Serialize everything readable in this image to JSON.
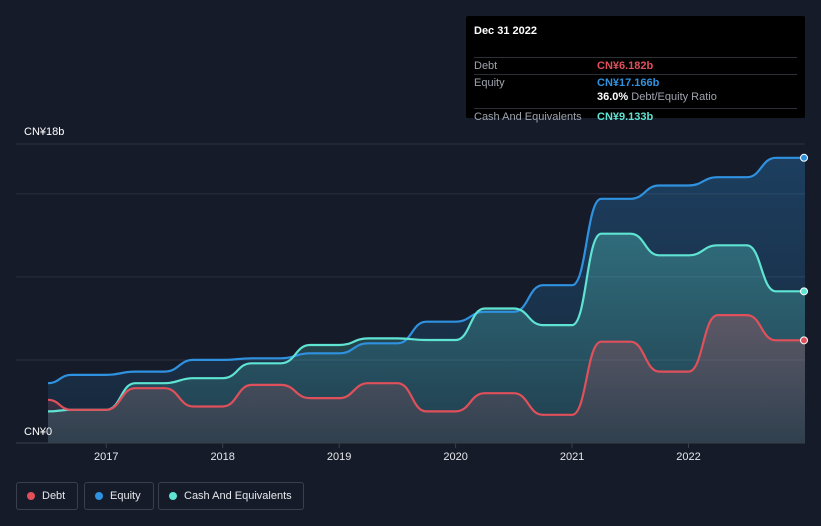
{
  "tooltip": {
    "date": "Dec 31 2022",
    "debt_label": "Debt",
    "debt_value": "CN¥6.182b",
    "equity_label": "Equity",
    "equity_value": "CN¥17.166b",
    "ratio_value": "36.0%",
    "ratio_label": "Debt/Equity Ratio",
    "cash_label": "Cash And Equivalents",
    "cash_value": "CN¥9.133b"
  },
  "colors": {
    "debt": "#e0505a",
    "equity": "#2f92e0",
    "cash": "#5fe3d2",
    "background": "#151b28"
  },
  "legend": {
    "debt": "Debt",
    "equity": "Equity",
    "cash": "Cash And Equivalents"
  },
  "chart_data": {
    "type": "area",
    "title": "",
    "ylabel_top": "CN¥18b",
    "ylabel_bottom": "CN¥0",
    "ylim": [
      0,
      18
    ],
    "xlim": [
      2016.5,
      2023.0
    ],
    "x_ticks": [
      2017,
      2018,
      2019,
      2020,
      2021,
      2022
    ],
    "x_tick_labels": [
      "2017",
      "2018",
      "2019",
      "2020",
      "2021",
      "2022"
    ],
    "grid_values": [
      5,
      10,
      15,
      18
    ],
    "series": [
      {
        "name": "Equity",
        "key": "equity",
        "values": [
          [
            2016.5,
            3.6
          ],
          [
            2016.7,
            4.1
          ],
          [
            2017.0,
            4.1
          ],
          [
            2017.25,
            4.3
          ],
          [
            2017.5,
            4.3
          ],
          [
            2017.75,
            5.0
          ],
          [
            2018.0,
            5.0
          ],
          [
            2018.25,
            5.1
          ],
          [
            2018.5,
            5.1
          ],
          [
            2018.75,
            5.4
          ],
          [
            2019.0,
            5.4
          ],
          [
            2019.25,
            6.0
          ],
          [
            2019.5,
            6.0
          ],
          [
            2019.75,
            7.3
          ],
          [
            2020.0,
            7.3
          ],
          [
            2020.25,
            7.9
          ],
          [
            2020.5,
            7.9
          ],
          [
            2020.75,
            9.5
          ],
          [
            2021.0,
            9.5
          ],
          [
            2021.25,
            14.7
          ],
          [
            2021.5,
            14.7
          ],
          [
            2021.75,
            15.5
          ],
          [
            2022.0,
            15.5
          ],
          [
            2022.25,
            16.0
          ],
          [
            2022.5,
            16.0
          ],
          [
            2022.75,
            17.17
          ],
          [
            2023.0,
            17.17
          ]
        ]
      },
      {
        "name": "Cash And Equivalents",
        "key": "cash",
        "values": [
          [
            2016.5,
            1.9
          ],
          [
            2016.7,
            2.0
          ],
          [
            2017.0,
            2.0
          ],
          [
            2017.25,
            3.6
          ],
          [
            2017.5,
            3.6
          ],
          [
            2017.75,
            3.9
          ],
          [
            2018.0,
            3.9
          ],
          [
            2018.25,
            4.8
          ],
          [
            2018.5,
            4.8
          ],
          [
            2018.75,
            5.9
          ],
          [
            2019.0,
            5.9
          ],
          [
            2019.25,
            6.3
          ],
          [
            2019.5,
            6.3
          ],
          [
            2019.75,
            6.2
          ],
          [
            2020.0,
            6.2
          ],
          [
            2020.25,
            8.1
          ],
          [
            2020.5,
            8.1
          ],
          [
            2020.75,
            7.1
          ],
          [
            2021.0,
            7.1
          ],
          [
            2021.25,
            12.6
          ],
          [
            2021.5,
            12.6
          ],
          [
            2021.75,
            11.3
          ],
          [
            2022.0,
            11.3
          ],
          [
            2022.25,
            11.9
          ],
          [
            2022.5,
            11.9
          ],
          [
            2022.75,
            9.13
          ],
          [
            2023.0,
            9.13
          ]
        ]
      },
      {
        "name": "Debt",
        "key": "debt",
        "values": [
          [
            2016.5,
            2.6
          ],
          [
            2016.7,
            2.0
          ],
          [
            2017.0,
            2.0
          ],
          [
            2017.25,
            3.3
          ],
          [
            2017.5,
            3.3
          ],
          [
            2017.75,
            2.2
          ],
          [
            2018.0,
            2.2
          ],
          [
            2018.25,
            3.5
          ],
          [
            2018.5,
            3.5
          ],
          [
            2018.75,
            2.7
          ],
          [
            2019.0,
            2.7
          ],
          [
            2019.25,
            3.6
          ],
          [
            2019.5,
            3.6
          ],
          [
            2019.75,
            1.9
          ],
          [
            2020.0,
            1.9
          ],
          [
            2020.25,
            3.0
          ],
          [
            2020.5,
            3.0
          ],
          [
            2020.75,
            1.7
          ],
          [
            2021.0,
            1.7
          ],
          [
            2021.25,
            6.1
          ],
          [
            2021.5,
            6.1
          ],
          [
            2021.75,
            4.3
          ],
          [
            2022.0,
            4.3
          ],
          [
            2022.25,
            7.7
          ],
          [
            2022.5,
            7.7
          ],
          [
            2022.75,
            6.18
          ],
          [
            2023.0,
            6.18
          ]
        ]
      }
    ]
  }
}
